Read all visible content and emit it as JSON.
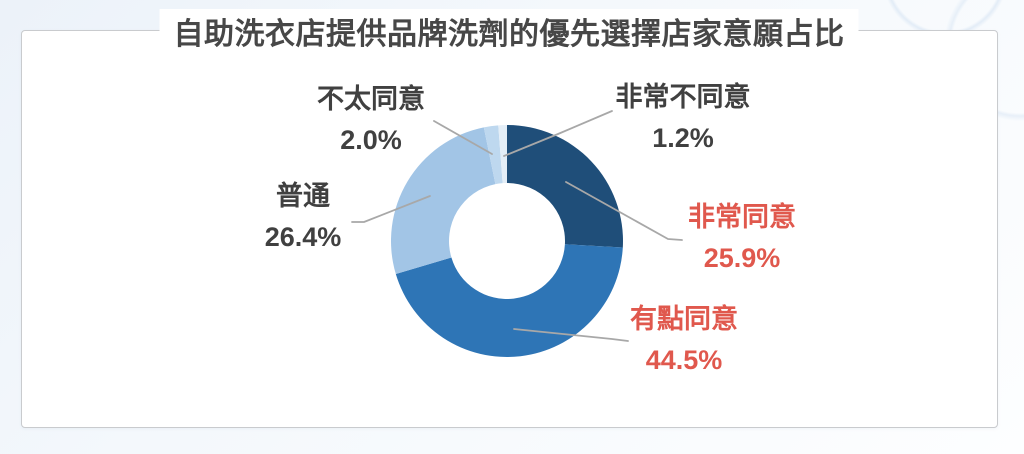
{
  "chart_data": {
    "type": "pie",
    "subtype": "donut",
    "title": "自助洗衣店提供品牌洗劑的優先選擇店家意願占比",
    "unit": "%",
    "direction": "clockwise",
    "start_angle_deg": 0,
    "hole_ratio": 0.5,
    "legend_position": "callout-labels",
    "slices": [
      {
        "label": "非常同意",
        "value": 25.9,
        "display": "25.9%",
        "color": "#1f4e79",
        "label_color": "#e0584d"
      },
      {
        "label": "有點同意",
        "value": 44.5,
        "display": "44.5%",
        "color": "#2e75b6",
        "label_color": "#e0584d"
      },
      {
        "label": "普通",
        "value": 26.4,
        "display": "26.4%",
        "color": "#a2c5e6",
        "label_color": "#404040"
      },
      {
        "label": "不太同意",
        "value": 2.0,
        "display": "2.0%",
        "color": "#bed8ef",
        "label_color": "#404040"
      },
      {
        "label": "非常不同意",
        "value": 1.2,
        "display": "1.2%",
        "color": "#e4eef7",
        "label_color": "#404040"
      }
    ]
  }
}
